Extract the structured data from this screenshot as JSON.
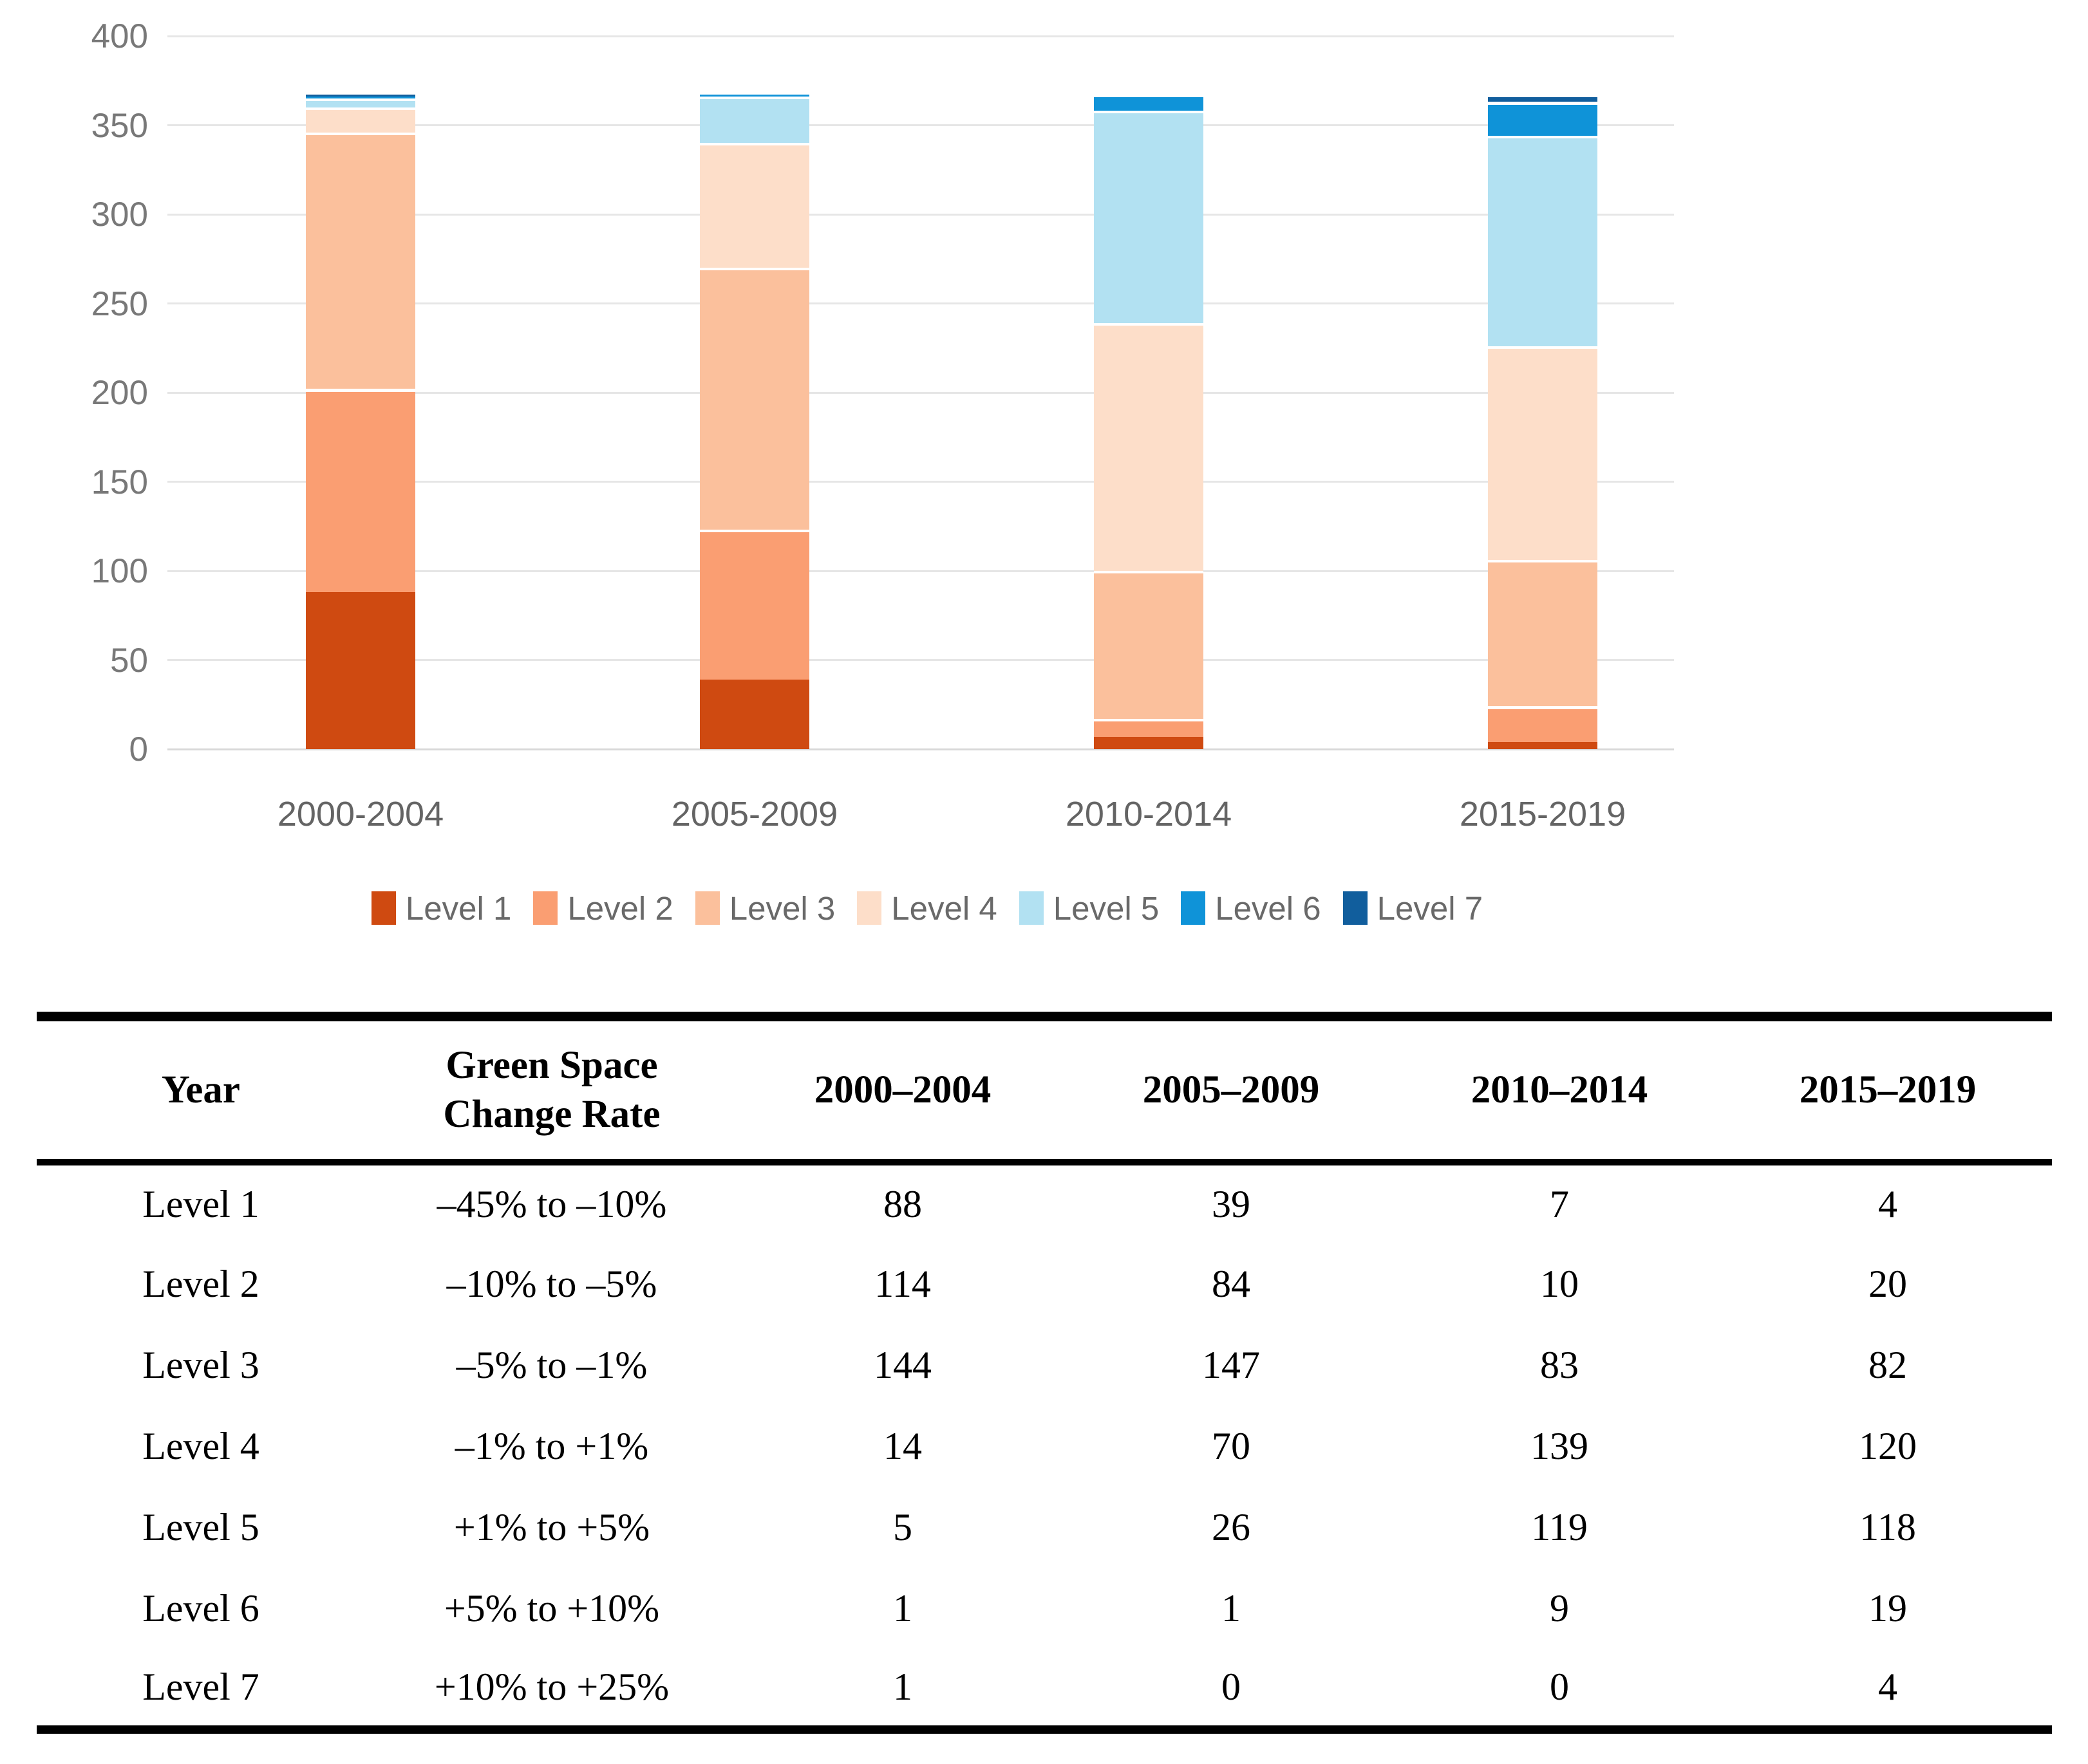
{
  "chart_data": {
    "type": "bar",
    "stacked": true,
    "title": "",
    "xlabel": "",
    "ylabel": "",
    "categories": [
      "2000-2004",
      "2005-2009",
      "2010-2014",
      "2015-2019"
    ],
    "series": [
      {
        "name": "Level 1",
        "color": "#cf4a11",
        "values": [
          88,
          39,
          7,
          4
        ]
      },
      {
        "name": "Level 2",
        "color": "#fa9e72",
        "values": [
          114,
          84,
          10,
          20
        ]
      },
      {
        "name": "Level 3",
        "color": "#fbc09c",
        "values": [
          144,
          147,
          83,
          82
        ]
      },
      {
        "name": "Level 4",
        "color": "#fddec9",
        "values": [
          14,
          70,
          139,
          120
        ]
      },
      {
        "name": "Level 5",
        "color": "#b2e1f2",
        "values": [
          5,
          26,
          119,
          118
        ]
      },
      {
        "name": "Level 6",
        "color": "#0f93d8",
        "values": [
          1,
          1,
          9,
          19
        ]
      },
      {
        "name": "Level 7",
        "color": "#115e9d",
        "values": [
          1,
          0,
          0,
          4
        ]
      }
    ],
    "ylim": [
      0,
      400
    ],
    "y_ticks": [
      0,
      50,
      100,
      150,
      200,
      250,
      300,
      350,
      400
    ],
    "grid": true,
    "legend_position": "bottom"
  },
  "table": {
    "headers": {
      "year": "Year",
      "rate": "Green Space\nChange Rate",
      "periods": [
        "2000–2004",
        "2005–2009",
        "2010–2014",
        "2015–2019"
      ]
    },
    "rows": [
      {
        "level": "Level 1",
        "rate": "–45% to –10%",
        "values": [
          "88",
          "39",
          "7",
          "4"
        ]
      },
      {
        "level": "Level 2",
        "rate": "–10% to –5%",
        "values": [
          "114",
          "84",
          "10",
          "20"
        ]
      },
      {
        "level": "Level 3",
        "rate": "–5% to –1%",
        "values": [
          "144",
          "147",
          "83",
          "82"
        ]
      },
      {
        "level": "Level 4",
        "rate": "–1% to +1%",
        "values": [
          "14",
          "70",
          "139",
          "120"
        ]
      },
      {
        "level": "Level 5",
        "rate": "+1% to +5%",
        "values": [
          "5",
          "26",
          "119",
          "118"
        ]
      },
      {
        "level": "Level 6",
        "rate": "+5% to +10%",
        "values": [
          "1",
          "1",
          "9",
          "19"
        ]
      },
      {
        "level": "Level 7",
        "rate": "+10% to +25%",
        "values": [
          "1",
          "0",
          "0",
          "4"
        ]
      }
    ]
  }
}
